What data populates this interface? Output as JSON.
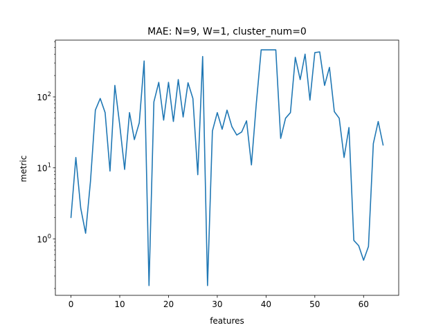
{
  "chart_data": {
    "type": "line",
    "title": "MAE: N=9, W=1, cluster_num=0",
    "xlabel": "features",
    "ylabel": "metric",
    "yscale": "log",
    "xlim": [
      -3.2,
      67.2
    ],
    "ylim": [
      0.16,
      630
    ],
    "x_ticks": [
      0,
      10,
      20,
      30,
      40,
      50,
      60
    ],
    "y_ticks": [
      {
        "value": 1,
        "label_base": "10",
        "label_exp": "0"
      },
      {
        "value": 10,
        "label_base": "10",
        "label_exp": "1"
      },
      {
        "value": 100,
        "label_base": "10",
        "label_exp": "2"
      }
    ],
    "grid": false,
    "color": "#1f77b4",
    "series": [
      {
        "x": [
          0,
          1,
          2,
          3,
          4,
          5,
          6,
          7,
          8,
          9,
          10,
          11,
          12,
          13,
          14,
          15,
          16,
          17,
          18,
          19,
          20,
          21,
          22,
          23,
          24,
          25,
          26,
          27,
          28,
          29,
          30,
          31,
          32,
          33,
          34,
          35,
          36,
          37,
          38,
          39,
          40,
          41,
          42,
          43,
          44,
          45,
          46,
          47,
          48,
          49,
          50,
          51,
          52,
          53,
          54,
          55,
          56,
          57,
          58,
          59,
          60,
          61,
          62,
          63,
          64
        ],
        "values": [
          2.0,
          14,
          2.7,
          1.2,
          6.5,
          65,
          95,
          60,
          9,
          145,
          40,
          9.5,
          60,
          25,
          43,
          320,
          0.22,
          85,
          160,
          47,
          160,
          45,
          175,
          52,
          158,
          95,
          8,
          370,
          0.22,
          33,
          60,
          35,
          65,
          38,
          29,
          32,
          46,
          11,
          80,
          460,
          460,
          460,
          460,
          26,
          50,
          60,
          360,
          175,
          400,
          90,
          420,
          430,
          145,
          260,
          62,
          50,
          14,
          37,
          0.95,
          0.8,
          0.5,
          0.78,
          22,
          45,
          21
        ]
      }
    ]
  }
}
